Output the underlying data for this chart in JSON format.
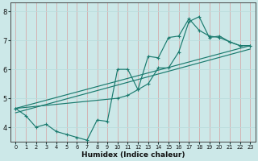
{
  "xlabel": "Humidex (Indice chaleur)",
  "bg_color": "#cce8e8",
  "grid_color_v": "#d4aaaa",
  "grid_color_h": "#bbdddd",
  "line_color": "#1a7a6e",
  "xlim": [
    -0.5,
    23.5
  ],
  "ylim": [
    3.5,
    8.3
  ],
  "yticks": [
    4,
    5,
    6,
    7,
    8
  ],
  "xticks": [
    0,
    1,
    2,
    3,
    4,
    5,
    6,
    7,
    8,
    9,
    10,
    11,
    12,
    13,
    14,
    15,
    16,
    17,
    18,
    19,
    20,
    21,
    22,
    23
  ],
  "series1_x": [
    0,
    1,
    2,
    3,
    4,
    5,
    6,
    7,
    8,
    9,
    10,
    11,
    12,
    13,
    14,
    15,
    16,
    17,
    18,
    19,
    20,
    21,
    22,
    23
  ],
  "series1_y": [
    4.65,
    4.4,
    4.0,
    4.1,
    3.85,
    3.75,
    3.65,
    3.55,
    4.25,
    4.2,
    6.0,
    6.0,
    5.3,
    6.45,
    6.4,
    7.1,
    7.15,
    7.75,
    7.35,
    7.15,
    7.1,
    6.95,
    6.82,
    6.82
  ],
  "series2_x": [
    0,
    10,
    11,
    12,
    13,
    14,
    15,
    16,
    17,
    18,
    19,
    20,
    21,
    22,
    23
  ],
  "series2_y": [
    4.65,
    5.0,
    5.1,
    5.3,
    5.5,
    6.05,
    6.05,
    6.6,
    7.65,
    7.82,
    7.1,
    7.15,
    6.95,
    6.82,
    6.82
  ],
  "line3": [
    [
      0,
      4.65
    ],
    [
      23,
      6.82
    ]
  ],
  "line4": [
    [
      0,
      4.5
    ],
    [
      23,
      6.7
    ]
  ]
}
